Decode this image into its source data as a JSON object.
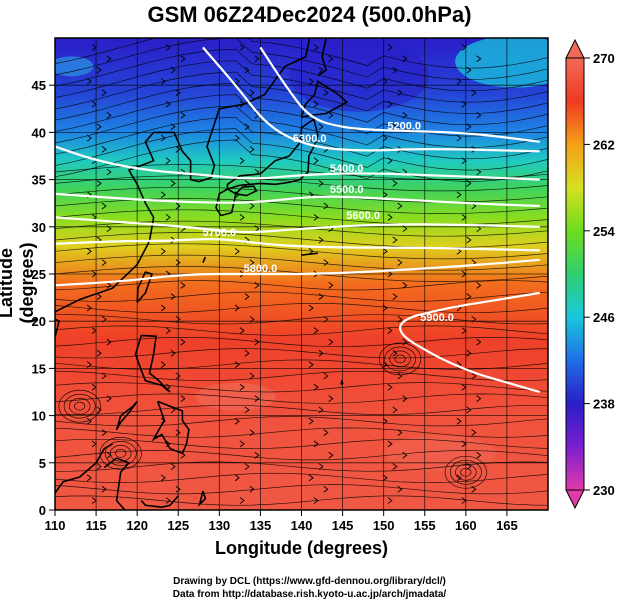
{
  "title": "GSM 06Z24Dec2024 (500.0hPa)",
  "credits": {
    "line1": "Drawing by DCL (https://www.gfd-dennou.org/library/dcl/)",
    "line2": "Data from http://database.rish.kyoto-u.ac.jp/arch/jmadata/"
  },
  "colors": {
    "contour": "#ffffff",
    "streamline": "#000000",
    "coastline": "#000000",
    "grid": "#000000"
  },
  "chart_data": {
    "type": "heatmap",
    "xlabel": "Longitude (degrees)",
    "ylabel": "Latitude (degrees)",
    "xlim": [
      110,
      170
    ],
    "ylim": [
      0,
      50
    ],
    "x_ticks": [
      110,
      115,
      120,
      125,
      130,
      135,
      140,
      145,
      150,
      155,
      160,
      165
    ],
    "y_ticks": [
      0,
      5,
      10,
      15,
      20,
      25,
      30,
      35,
      40,
      45
    ],
    "grid": true,
    "colorbar": {
      "range": [
        230,
        270
      ],
      "tick_labels": [
        "270",
        "262",
        "254",
        "246",
        "238",
        "230"
      ],
      "stops": [
        "#e23aa8",
        "#7a1fd0",
        "#2a1ec8",
        "#1f6ee6",
        "#19c8dc",
        "#2fd070",
        "#6fdc1e",
        "#d6e020",
        "#f5a018",
        "#ef3a22",
        "#f06a58"
      ]
    },
    "temperature_bands": [
      {
        "lat": 0,
        "value": 268.5
      },
      {
        "lat": 10,
        "value": 268
      },
      {
        "lat": 18,
        "value": 266.5
      },
      {
        "lat": 24,
        "value": 264
      },
      {
        "lat": 28,
        "value": 259
      },
      {
        "lat": 31,
        "value": 255
      },
      {
        "lat": 34,
        "value": 251
      },
      {
        "lat": 37,
        "value": 247
      },
      {
        "lat": 40,
        "value": 243
      },
      {
        "lat": 44,
        "value": 240
      },
      {
        "lat": 50,
        "value": 238
      }
    ],
    "contours": [
      {
        "label": "5200.0",
        "label_lon": 152.5,
        "label_lat": 40.3,
        "points": [
          [
            135,
            49
          ],
          [
            138,
            45
          ],
          [
            141,
            41.5
          ],
          [
            145,
            40.5
          ],
          [
            150,
            40.2
          ],
          [
            160,
            40
          ],
          [
            169,
            39
          ]
        ]
      },
      {
        "label": "5300.0",
        "label_lon": 141,
        "label_lat": 39.0,
        "points": [
          [
            128,
            49
          ],
          [
            132,
            45
          ],
          [
            136,
            40.5
          ],
          [
            141,
            38.5
          ],
          [
            147,
            38
          ],
          [
            155,
            38.3
          ],
          [
            169,
            38
          ]
        ]
      },
      {
        "label": "5400.0",
        "label_lon": 145.5,
        "label_lat": 35.8,
        "points": [
          [
            110,
            38.5
          ],
          [
            115,
            37
          ],
          [
            121,
            36
          ],
          [
            128,
            35.5
          ],
          [
            134,
            35
          ],
          [
            140,
            35.5
          ],
          [
            147,
            35.7
          ],
          [
            155,
            35.5
          ],
          [
            169,
            35
          ]
        ]
      },
      {
        "label": "5500.0",
        "label_lon": 145.5,
        "label_lat": 33.6,
        "points": [
          [
            110,
            33.5
          ],
          [
            118,
            33
          ],
          [
            126,
            32.6
          ],
          [
            134,
            32.5
          ],
          [
            142,
            33.3
          ],
          [
            150,
            33
          ],
          [
            160,
            32.5
          ],
          [
            169,
            32.2
          ]
        ]
      },
      {
        "label": "5600.0",
        "label_lon": 147.5,
        "label_lat": 30.8,
        "points": [
          [
            110,
            31
          ],
          [
            118,
            30.5
          ],
          [
            126,
            30
          ],
          [
            133,
            29.3
          ],
          [
            140,
            29.8
          ],
          [
            150,
            30.3
          ],
          [
            160,
            30.2
          ],
          [
            169,
            30
          ]
        ]
      },
      {
        "label": "5700.0",
        "label_lon": 130,
        "label_lat": 29.0,
        "points": [
          [
            110,
            28.2
          ],
          [
            118,
            28.5
          ],
          [
            124,
            28.5
          ],
          [
            130,
            28.8
          ],
          [
            137,
            28
          ],
          [
            145,
            27.8
          ],
          [
            155,
            27.8
          ],
          [
            169,
            27.5
          ]
        ]
      },
      {
        "label": "5800.0",
        "label_lon": 135,
        "label_lat": 25.2,
        "points": [
          [
            110,
            23.8
          ],
          [
            118,
            24.2
          ],
          [
            126,
            25
          ],
          [
            134,
            25
          ],
          [
            142,
            25
          ],
          [
            152,
            25.4
          ],
          [
            162,
            26
          ],
          [
            169,
            26.5
          ]
        ]
      },
      {
        "label": "5900.0",
        "label_lon": 156.5,
        "label_lat": 20.0,
        "points": [
          [
            154,
            17.5
          ],
          [
            157,
            16
          ],
          [
            161,
            14.5
          ],
          [
            165,
            13.5
          ],
          [
            169,
            12.5
          ]
        ]
      }
    ]
  }
}
